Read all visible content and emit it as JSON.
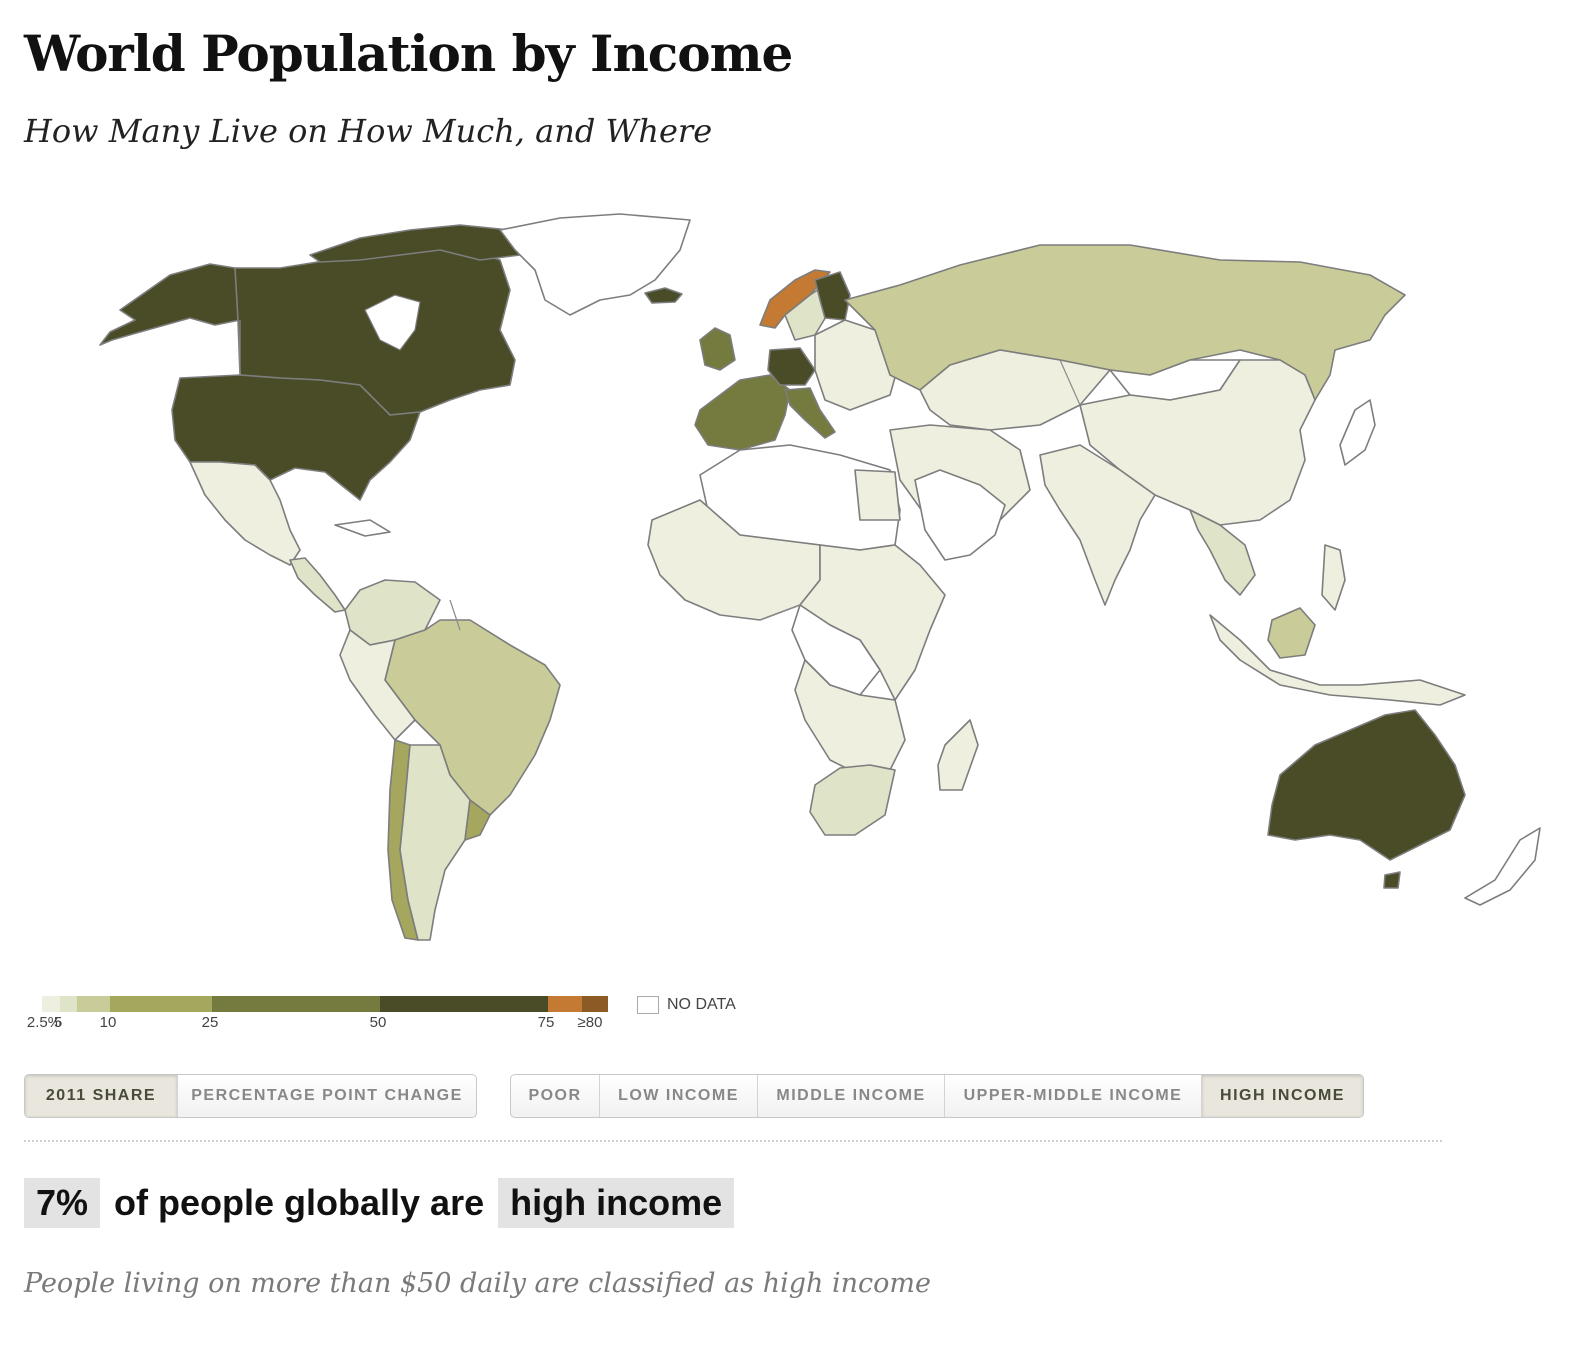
{
  "header": {
    "title": "World Population by Income",
    "subtitle": "How Many Live on How Much, and Where"
  },
  "colors": {
    "accent_dark": "#4a4b27",
    "no_data": "#ffffff",
    "scale": [
      "#eeefdf",
      "#dfe3c8",
      "#c9cc98",
      "#a4a75d",
      "#757a3f",
      "#4a4b27",
      "#c47a33",
      "#8b5a25"
    ]
  },
  "legend": {
    "ticks": [
      "2.5%",
      "5",
      "10",
      "25",
      "50",
      "75",
      "≥80"
    ],
    "bins": [
      {
        "from": 2.5,
        "to": 5,
        "color": "#eeefdf"
      },
      {
        "from": 5,
        "to": 7.5,
        "color": "#dfe3c8"
      },
      {
        "from": 7.5,
        "to": 10,
        "color": "#c9cc98"
      },
      {
        "from": 10,
        "to": 25,
        "color": "#a4a75d"
      },
      {
        "from": 25,
        "to": 50,
        "color": "#757a3f"
      },
      {
        "from": 50,
        "to": 75,
        "color": "#4a4b27"
      },
      {
        "from": 75,
        "to": 80,
        "color": "#c47a33"
      },
      {
        "from": 80,
        "to": 85,
        "color": "#8b5a25"
      }
    ],
    "no_data_label": "NO DATA"
  },
  "metric_buttons": [
    {
      "label": "2011 SHARE",
      "active": true
    },
    {
      "label": "PERCENTAGE POINT CHANGE",
      "active": false
    }
  ],
  "income_buttons": [
    {
      "label": "POOR",
      "active": false
    },
    {
      "label": "LOW INCOME",
      "active": false
    },
    {
      "label": "MIDDLE INCOME",
      "active": false
    },
    {
      "label": "UPPER-MIDDLE INCOME",
      "active": false
    },
    {
      "label": "HIGH INCOME",
      "active": true
    }
  ],
  "summary": {
    "percent": "7%",
    "middle": "of people globally are",
    "category": "high income"
  },
  "note": "People living on more than $50 daily are classified as high income"
}
